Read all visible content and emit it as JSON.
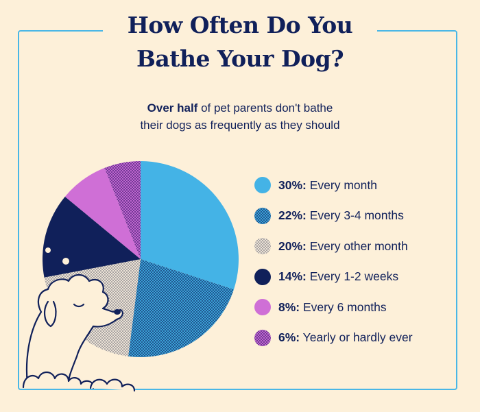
{
  "header": {
    "title_line1": "How Often Do You",
    "title_line2": "Bathe Your Dog?",
    "subtitle_bold": "Over half",
    "subtitle_line1_rest": " of pet parents don't bathe",
    "subtitle_line2": "their dogs as frequently as they should"
  },
  "colors": {
    "background": "#fdf0d9",
    "frame": "#49b7e6",
    "text": "#10205a"
  },
  "chart_data": {
    "type": "pie",
    "start": "12 o'clock",
    "direction": "clockwise",
    "slices": [
      {
        "label": "Every month",
        "pct_label": "30%:",
        "value": 30,
        "color": "#44b3e6",
        "pattern": "solid"
      },
      {
        "label": "Every 3-4 months",
        "pct_label": "22%:",
        "value": 22,
        "color": "#3aa2d8",
        "pattern": "dots-dark-blue"
      },
      {
        "label": "Every other month",
        "pct_label": "20%:",
        "value": 20,
        "color": "#e6ddd0",
        "pattern": "dots-gray"
      },
      {
        "label": "Every 1-2 weeks",
        "pct_label": "14%:",
        "value": 14,
        "color": "#10205a",
        "pattern": "solid"
      },
      {
        "label": "Every 6 months",
        "pct_label": "8%:",
        "value": 8,
        "color": "#cf6fd6",
        "pattern": "solid"
      },
      {
        "label": "Yearly or hardly ever",
        "pct_label": "6%:",
        "value": 6,
        "color": "#9a4fc0",
        "pattern": "dots-purple"
      }
    ]
  },
  "illustration": {
    "subject": "poodle",
    "icon": "poodle-icon"
  }
}
